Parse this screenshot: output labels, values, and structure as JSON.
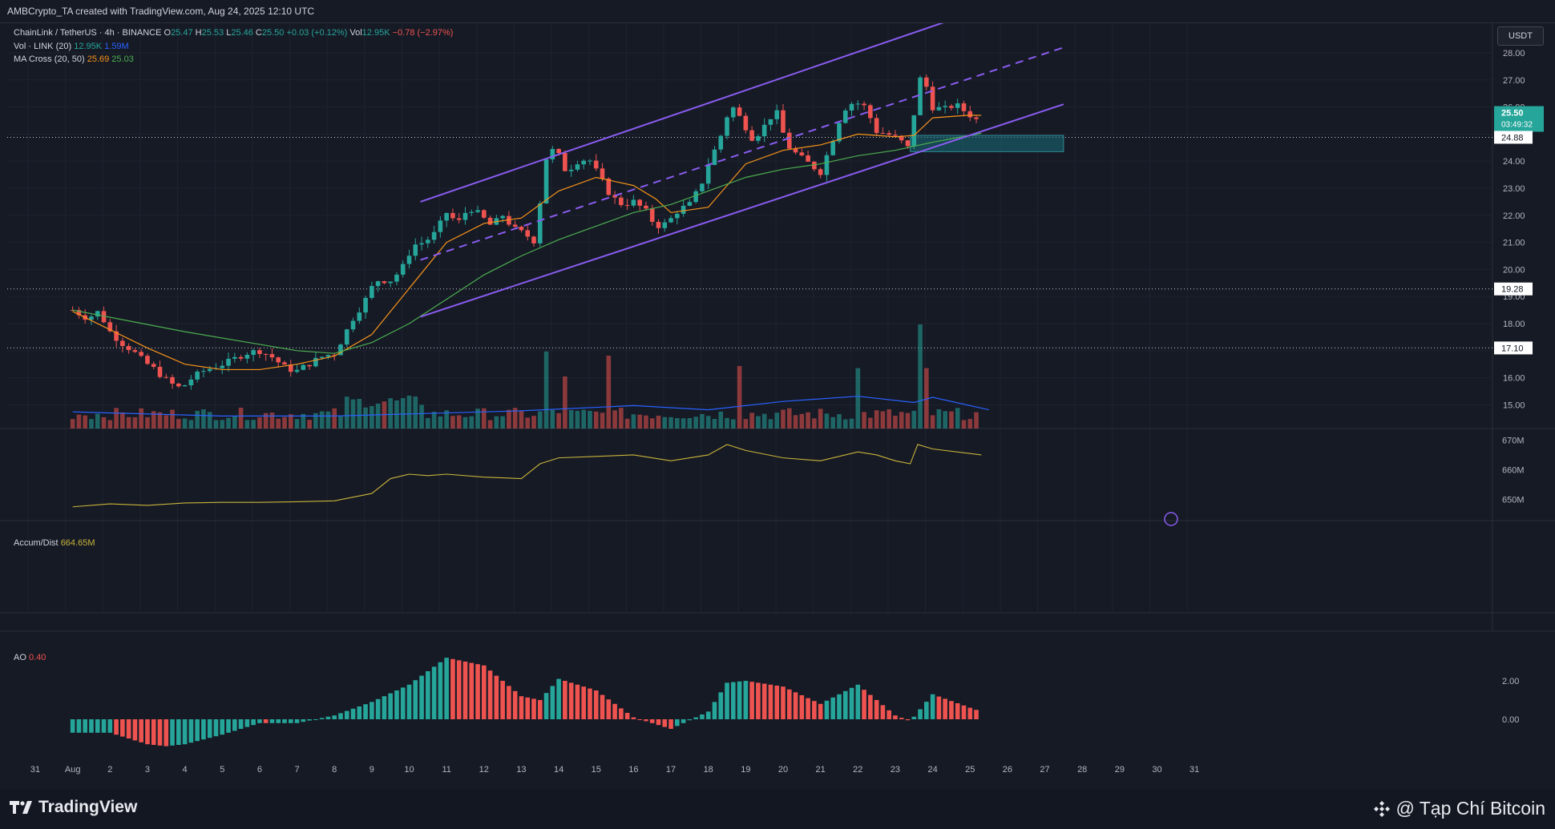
{
  "header": {
    "credit": "AMBCrypto_TA created with TradingView.com, Aug 24, 2025 12:10 UTC"
  },
  "legend": {
    "symbol": "ChainLink / TetherUS · 4h · BINANCE",
    "o_label": "O",
    "o": "25.47",
    "h_label": "H",
    "h": "25.53",
    "l_label": "L",
    "l": "25.46",
    "c_label": "C",
    "c": "25.50",
    "change": "+0.03 (+0.12%)",
    "vol_label": "Vol",
    "vol": "12.95K",
    "vol_change": "−0.78 (−2.97%)",
    "vol_ind_name": "Vol · LINK (20)",
    "vol_ind_v1": "12.95K",
    "vol_ind_v2": "1.59M",
    "ma_name": "MA Cross (20, 50)",
    "ma_v1": "25.69",
    "ma_v2": "25.03",
    "ad_name": "Accum/Dist",
    "ad_value": "664.65M",
    "ao_name": "AO",
    "ao_value": "0.40"
  },
  "currency_button": "USDT",
  "footer": {
    "logo_text": "TradingView",
    "watermark": "@ Tạp Chí Bitcoin"
  },
  "colors": {
    "up": "#26a69a",
    "down": "#ef5350",
    "ma20": "#f7931a",
    "ma50": "#4caf50",
    "channel": "#7e57c2",
    "background": "#161a25"
  },
  "chart_data": {
    "type": "candlestick",
    "price_axis": {
      "ticks": [
        "15.00",
        "16.00",
        "17.00",
        "18.00",
        "19.00",
        "20.00",
        "21.00",
        "22.00",
        "23.00",
        "24.00",
        "25.00",
        "26.00",
        "27.00",
        "28.00"
      ],
      "range": [
        14.5,
        29.2
      ]
    },
    "price_labels": [
      {
        "text": "25.50",
        "sub": "03:49:32",
        "kind": "current",
        "value": 25.5
      },
      {
        "text": "24.88",
        "kind": "level",
        "value": 24.88
      },
      {
        "text": "19.28",
        "kind": "level",
        "value": 19.28
      },
      {
        "text": "17.10",
        "kind": "level",
        "value": 17.1
      }
    ],
    "x_axis": {
      "labels": [
        "31",
        "Aug",
        "2",
        "3",
        "4",
        "5",
        "6",
        "7",
        "8",
        "9",
        "10",
        "11",
        "12",
        "13",
        "14",
        "15",
        "16",
        "17",
        "18",
        "19",
        "20",
        "21",
        "22",
        "23",
        "24",
        "25",
        "26",
        "27",
        "28",
        "29",
        "30",
        "31"
      ]
    },
    "anchors": [
      {
        "d": 0.0,
        "p": 18.5
      },
      {
        "d": 0.4,
        "p": 18.2
      },
      {
        "d": 0.7,
        "p": 18.45
      },
      {
        "d": 1.0,
        "p": 17.7
      },
      {
        "d": 1.3,
        "p": 17.3
      },
      {
        "d": 1.6,
        "p": 17.0
      },
      {
        "d": 1.9,
        "p": 16.6
      },
      {
        "d": 2.2,
        "p": 16.3
      },
      {
        "d": 2.6,
        "p": 15.8
      },
      {
        "d": 2.9,
        "p": 15.6
      },
      {
        "d": 3.2,
        "p": 16.0
      },
      {
        "d": 3.5,
        "p": 16.25
      },
      {
        "d": 3.8,
        "p": 16.4
      },
      {
        "d": 4.2,
        "p": 16.6
      },
      {
        "d": 4.6,
        "p": 16.9
      },
      {
        "d": 5.0,
        "p": 17.0
      },
      {
        "d": 5.3,
        "p": 16.8
      },
      {
        "d": 5.7,
        "p": 16.35
      },
      {
        "d": 6.0,
        "p": 16.25
      },
      {
        "d": 6.3,
        "p": 16.5
      },
      {
        "d": 6.7,
        "p": 16.8
      },
      {
        "d": 7.0,
        "p": 16.9
      },
      {
        "d": 7.2,
        "p": 17.4
      },
      {
        "d": 7.5,
        "p": 18.2
      },
      {
        "d": 7.8,
        "p": 18.8
      },
      {
        "d": 8.1,
        "p": 19.6
      },
      {
        "d": 8.5,
        "p": 19.6
      },
      {
        "d": 8.8,
        "p": 20.0
      },
      {
        "d": 9.1,
        "p": 20.9
      },
      {
        "d": 9.4,
        "p": 21.0
      },
      {
        "d": 9.7,
        "p": 21.35
      },
      {
        "d": 10.0,
        "p": 22.1
      },
      {
        "d": 10.3,
        "p": 21.7
      },
      {
        "d": 10.6,
        "p": 22.3
      },
      {
        "d": 10.9,
        "p": 22.0
      },
      {
        "d": 11.2,
        "p": 21.6
      },
      {
        "d": 11.5,
        "p": 22.0
      },
      {
        "d": 11.8,
        "p": 21.5
      },
      {
        "d": 12.1,
        "p": 21.3
      },
      {
        "d": 12.4,
        "p": 21.0
      },
      {
        "d": 12.6,
        "p": 24.0
      },
      {
        "d": 12.9,
        "p": 24.5
      },
      {
        "d": 13.2,
        "p": 23.6
      },
      {
        "d": 13.5,
        "p": 24.0
      },
      {
        "d": 13.8,
        "p": 24.1
      },
      {
        "d": 14.1,
        "p": 23.4
      },
      {
        "d": 14.4,
        "p": 22.7
      },
      {
        "d": 14.7,
        "p": 22.4
      },
      {
        "d": 15.0,
        "p": 22.5
      },
      {
        "d": 15.3,
        "p": 22.2
      },
      {
        "d": 15.6,
        "p": 21.6
      },
      {
        "d": 15.9,
        "p": 21.7
      },
      {
        "d": 16.2,
        "p": 22.2
      },
      {
        "d": 16.5,
        "p": 22.4
      },
      {
        "d": 16.8,
        "p": 23.1
      },
      {
        "d": 17.0,
        "p": 23.9
      },
      {
        "d": 17.3,
        "p": 24.8
      },
      {
        "d": 17.6,
        "p": 26.1
      },
      {
        "d": 17.9,
        "p": 25.5
      },
      {
        "d": 18.2,
        "p": 24.8
      },
      {
        "d": 18.5,
        "p": 25.3
      },
      {
        "d": 18.8,
        "p": 25.9
      },
      {
        "d": 19.1,
        "p": 24.6
      },
      {
        "d": 19.4,
        "p": 24.2
      },
      {
        "d": 19.7,
        "p": 23.9
      },
      {
        "d": 20.0,
        "p": 23.6
      },
      {
        "d": 20.3,
        "p": 24.7
      },
      {
        "d": 20.6,
        "p": 25.9
      },
      {
        "d": 20.9,
        "p": 26.2
      },
      {
        "d": 21.2,
        "p": 26.0
      },
      {
        "d": 21.5,
        "p": 25.1
      },
      {
        "d": 21.8,
        "p": 25.0
      },
      {
        "d": 22.1,
        "p": 24.8
      },
      {
        "d": 22.4,
        "p": 24.4
      },
      {
        "d": 22.6,
        "p": 27.1
      },
      {
        "d": 22.8,
        "p": 26.9
      },
      {
        "d": 23.0,
        "p": 26.0
      },
      {
        "d": 23.3,
        "p": 25.9
      },
      {
        "d": 23.6,
        "p": 26.1
      },
      {
        "d": 23.9,
        "p": 25.8
      },
      {
        "d": 24.2,
        "p": 25.5
      }
    ],
    "ma20": [
      [
        0.0,
        18.45
      ],
      [
        2.0,
        17.1
      ],
      [
        3.0,
        16.5
      ],
      [
        4.0,
        16.3
      ],
      [
        5.0,
        16.3
      ],
      [
        6.0,
        16.5
      ],
      [
        7.0,
        16.8
      ],
      [
        8.0,
        17.6
      ],
      [
        9.0,
        19.3
      ],
      [
        10.0,
        21.0
      ],
      [
        11.0,
        21.7
      ],
      [
        12.0,
        21.9
      ],
      [
        13.0,
        22.9
      ],
      [
        14.0,
        23.4
      ],
      [
        15.0,
        23.1
      ],
      [
        15.6,
        22.6
      ],
      [
        16.0,
        22.1
      ],
      [
        17.0,
        22.3
      ],
      [
        18.0,
        23.9
      ],
      [
        19.0,
        24.4
      ],
      [
        20.0,
        24.6
      ],
      [
        21.0,
        25.0
      ],
      [
        22.0,
        24.9
      ],
      [
        22.5,
        24.95
      ],
      [
        23.0,
        25.6
      ],
      [
        24.0,
        25.7
      ],
      [
        24.3,
        25.69
      ]
    ],
    "ma50": [
      [
        0.0,
        18.5
      ],
      [
        3.0,
        17.7
      ],
      [
        6.0,
        17.0
      ],
      [
        7.0,
        16.9
      ],
      [
        8.0,
        17.3
      ],
      [
        9.0,
        18.0
      ],
      [
        10.0,
        18.9
      ],
      [
        11.0,
        19.8
      ],
      [
        12.0,
        20.5
      ],
      [
        13.0,
        21.1
      ],
      [
        14.0,
        21.6
      ],
      [
        15.0,
        22.1
      ],
      [
        16.0,
        22.4
      ],
      [
        17.0,
        22.9
      ],
      [
        18.0,
        23.4
      ],
      [
        19.0,
        23.7
      ],
      [
        20.0,
        23.9
      ],
      [
        21.0,
        24.2
      ],
      [
        22.0,
        24.4
      ],
      [
        23.0,
        24.7
      ],
      [
        24.3,
        25.03
      ]
    ],
    "channel": {
      "upper": [
        [
          9.3,
          22.5
        ],
        [
          24.3,
          29.6
        ]
      ],
      "mid": [
        [
          9.3,
          20.35
        ],
        [
          26.5,
          28.2
        ]
      ],
      "lower": [
        [
          9.3,
          18.25
        ],
        [
          26.5,
          26.1
        ]
      ]
    },
    "zone": {
      "from_day": 22.4,
      "to_day": 26.5,
      "top": 24.95,
      "bottom": 24.35
    },
    "hlines": [
      24.88,
      19.28,
      17.1
    ],
    "volume_ma": [
      [
        0,
        0.16
      ],
      [
        4,
        0.12
      ],
      [
        7,
        0.12
      ],
      [
        9,
        0.14
      ],
      [
        12,
        0.17
      ],
      [
        15,
        0.22
      ],
      [
        17,
        0.18
      ],
      [
        19,
        0.26
      ],
      [
        21,
        0.31
      ],
      [
        22.5,
        0.25
      ],
      [
        23,
        0.3
      ],
      [
        24.5,
        0.18
      ]
    ],
    "volume_spikes": [
      [
        12.6,
        0.74
      ],
      [
        13.2,
        0.5
      ],
      [
        14.4,
        0.7
      ],
      [
        17.9,
        0.6
      ],
      [
        21.0,
        0.58
      ],
      [
        22.6,
        1.0
      ],
      [
        22.8,
        0.58
      ]
    ],
    "ad": {
      "axis": [
        "670M",
        "660M",
        "650M"
      ],
      "range": [
        645,
        672
      ],
      "points": [
        [
          0,
          647.5
        ],
        [
          1,
          648.5
        ],
        [
          2,
          648
        ],
        [
          3,
          648.8
        ],
        [
          4,
          649
        ],
        [
          5,
          649
        ],
        [
          6,
          649.2
        ],
        [
          7,
          649.5
        ],
        [
          8,
          652
        ],
        [
          8.5,
          657
        ],
        [
          9,
          658.5
        ],
        [
          9.5,
          658
        ],
        [
          10,
          658.5
        ],
        [
          11,
          657.5
        ],
        [
          12,
          657
        ],
        [
          12.5,
          662
        ],
        [
          13,
          664
        ],
        [
          14,
          664.5
        ],
        [
          15,
          665
        ],
        [
          16,
          663
        ],
        [
          17,
          665
        ],
        [
          17.5,
          668.5
        ],
        [
          18,
          666.5
        ],
        [
          19,
          664
        ],
        [
          20,
          663
        ],
        [
          21,
          666
        ],
        [
          21.5,
          665
        ],
        [
          22,
          663
        ],
        [
          22.4,
          662
        ],
        [
          22.6,
          668.5
        ],
        [
          23,
          667
        ],
        [
          24.3,
          665
        ]
      ]
    },
    "ao": {
      "axis": [
        "2.00",
        "0.00"
      ],
      "range": [
        -1.2,
        3.8
      ],
      "points": [
        [
          0,
          -0.7
        ],
        [
          1,
          -0.7
        ],
        [
          2,
          -1.3
        ],
        [
          2.5,
          -1.4
        ],
        [
          3,
          -1.3
        ],
        [
          4,
          -0.8
        ],
        [
          5,
          -0.2
        ],
        [
          6,
          -0.2
        ],
        [
          7,
          0.2
        ],
        [
          8,
          0.9
        ],
        [
          9,
          1.8
        ],
        [
          10,
          3.2
        ],
        [
          11,
          2.8
        ],
        [
          12,
          1.2
        ],
        [
          12.5,
          1.0
        ],
        [
          13,
          2.1
        ],
        [
          14,
          1.5
        ],
        [
          15,
          0.1
        ],
        [
          16,
          -0.5
        ],
        [
          17,
          0.4
        ],
        [
          17.5,
          1.9
        ],
        [
          18,
          2.0
        ],
        [
          19,
          1.7
        ],
        [
          20,
          0.8
        ],
        [
          21,
          1.8
        ],
        [
          22,
          0.2
        ],
        [
          22.4,
          -0.1
        ],
        [
          23,
          1.3
        ],
        [
          24,
          0.6
        ],
        [
          24.3,
          0.4
        ]
      ]
    }
  }
}
